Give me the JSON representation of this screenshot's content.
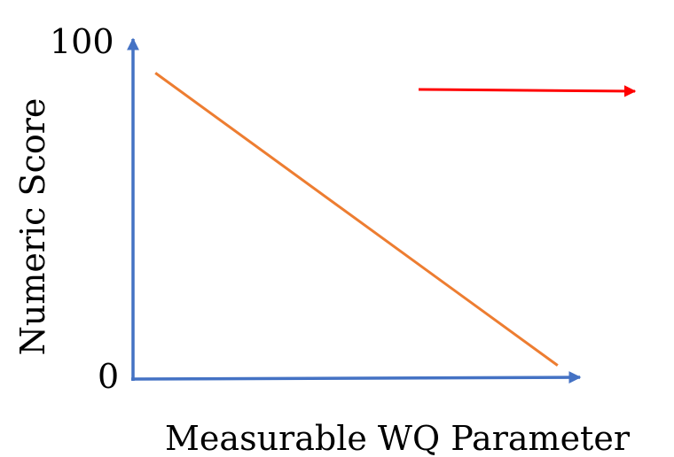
{
  "chart_data": {
    "type": "line",
    "title": "",
    "xlabel": "Measurable WQ Parameter",
    "ylabel": "Numeric Score",
    "y_tick_labels": [
      "0",
      "100"
    ],
    "ylim": [
      0,
      100
    ],
    "grid": false,
    "series": [
      {
        "color": "#ED7D31",
        "x": [
          0.05,
          0.95
        ],
        "y": [
          90,
          4
        ]
      }
    ],
    "annotations": [
      {
        "type": "arrow",
        "direction": "right",
        "color": "#FF0000"
      }
    ],
    "axis_color": "#4472C4"
  }
}
